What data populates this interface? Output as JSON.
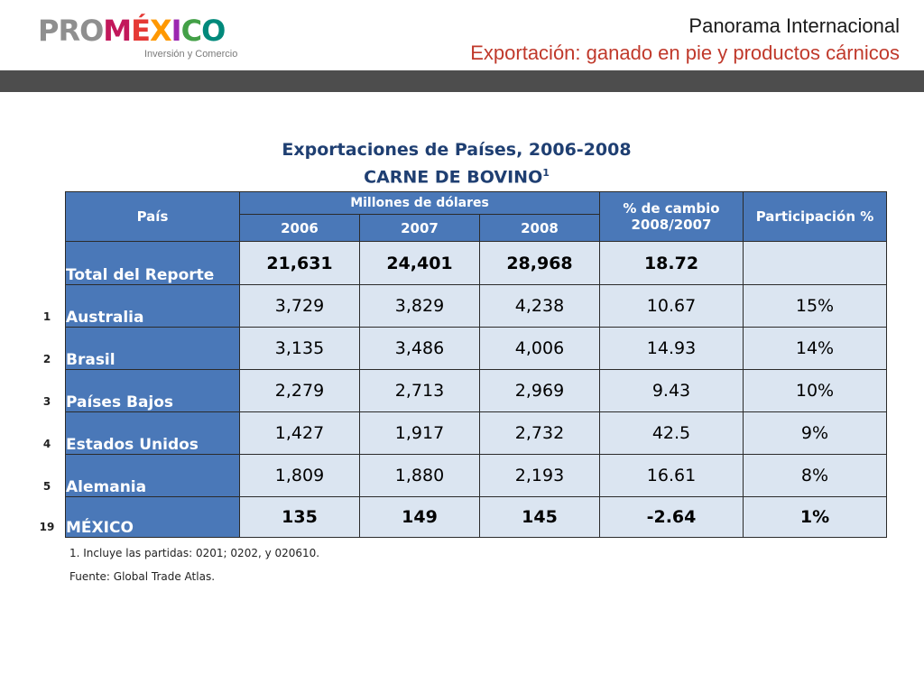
{
  "logo": {
    "pro": "PRO",
    "mexico": "MÉXICO",
    "tagline": "Inversión y Comercio"
  },
  "header": {
    "title": "Panorama Internacional",
    "subtitle_label": "Exportación:",
    "subtitle_rest": "ganado en pie y productos cárnicos"
  },
  "table_title": {
    "line1": "Exportaciones de Países, 2006-2008",
    "line2": "CARNE DE BOVINO",
    "line2_sup": "1"
  },
  "table": {
    "header_country": "País",
    "header_millions": "Millones de dólares",
    "years": [
      "2006",
      "2007",
      "2008"
    ],
    "header_change": "% de cambio 2008/2007",
    "header_share": "Participación %",
    "rows": [
      {
        "rank": "",
        "name": "Total del Reporte",
        "v2006": "21,631",
        "v2007": "24,401",
        "v2008": "28,968",
        "change": "18.72",
        "share": ""
      },
      {
        "rank": "1",
        "name": "Australia",
        "v2006": "3,729",
        "v2007": "3,829",
        "v2008": "4,238",
        "change": "10.67",
        "share": "15%"
      },
      {
        "rank": "2",
        "name": "Brasil",
        "v2006": "3,135",
        "v2007": "3,486",
        "v2008": "4,006",
        "change": "14.93",
        "share": "14%"
      },
      {
        "rank": "3",
        "name": "Países Bajos",
        "v2006": "2,279",
        "v2007": "2,713",
        "v2008": "2,969",
        "change": "9.43",
        "share": "10%"
      },
      {
        "rank": "4",
        "name": "Estados Unidos",
        "v2006": "1,427",
        "v2007": "1,917",
        "v2008": "2,732",
        "change": "42.5",
        "share": "9%"
      },
      {
        "rank": "5",
        "name": "Alemania",
        "v2006": "1,809",
        "v2007": "1,880",
        "v2008": "2,193",
        "change": "16.61",
        "share": "8%"
      },
      {
        "rank": "19",
        "name": "MÉXICO",
        "v2006": "135",
        "v2007": "149",
        "v2008": "145",
        "change": "-2.64",
        "share": "1%"
      }
    ]
  },
  "notes": {
    "footnote": "1. Incluye las partidas: 0201; 0202, y 020610.",
    "source": "Fuente: Global Trade Atlas."
  },
  "colors": {
    "header_blue": "#4a78b8",
    "cell_fill": "#dbe5f1",
    "title_navy": "#1f3f72",
    "band_gray": "#4d4d4d",
    "accent_red": "#c0392b"
  }
}
